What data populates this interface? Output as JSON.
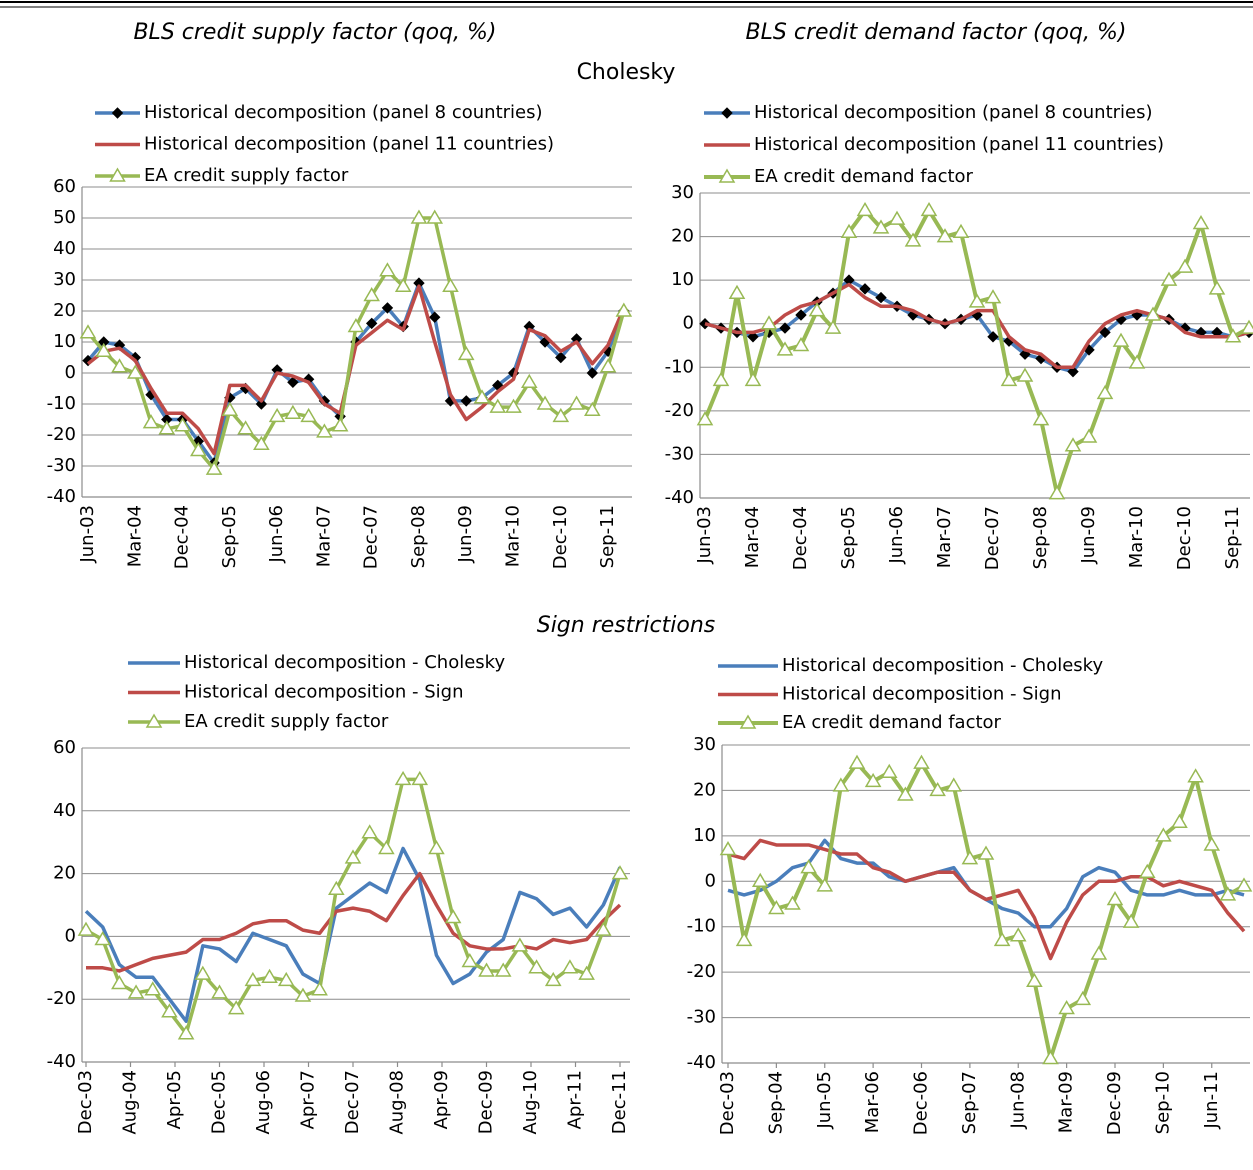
{
  "section_labels": [
    "Cholesky",
    "Sign restrictions"
  ],
  "chart_data": [
    {
      "type": "line",
      "title": "BLS credit supply factor (qoq, %)",
      "categories": [
        "Jun-03",
        null,
        null,
        "Mar-04",
        null,
        null,
        "Dec-04",
        null,
        null,
        "Sep-05",
        null,
        null,
        "Jun-06",
        null,
        null,
        "Mar-07",
        null,
        null,
        "Dec-07",
        null,
        null,
        "Sep-08",
        null,
        null,
        "Jun-09",
        null,
        null,
        "Mar-10",
        null,
        null,
        "Dec-10",
        null,
        null,
        "Sep-11",
        null
      ],
      "ylim": [
        -40,
        60
      ],
      "yticks": [
        -40,
        -30,
        -20,
        -10,
        0,
        10,
        20,
        30,
        40,
        50,
        60
      ],
      "grid": true,
      "series": [
        {
          "name": "Historical decomposition (panel 8 countries)",
          "color": "#4a7ebb",
          "marker": "diamond",
          "values": [
            4,
            10,
            9,
            5,
            -7,
            -15,
            -15,
            -22,
            -29,
            -8,
            -5,
            -10,
            1,
            -3,
            -2,
            -9,
            -14,
            10,
            16,
            21,
            15,
            29,
            18,
            -9,
            -9,
            -8,
            -4,
            0,
            15,
            10,
            5,
            11,
            0,
            7,
            20
          ]
        },
        {
          "name": "Historical decomposition (panel 11 countries)",
          "color": "#be4b48",
          "marker": "none",
          "values": [
            3,
            7,
            8,
            4,
            -5,
            -13,
            -13,
            -18,
            -26,
            -4,
            -4,
            -9,
            0,
            -1,
            -3,
            -10,
            -13,
            9,
            13,
            17,
            14,
            28,
            10,
            -7,
            -15,
            -11,
            -6,
            -2,
            14,
            12,
            7,
            10,
            3,
            9,
            21
          ]
        },
        {
          "name": "EA credit supply factor",
          "color": "#98b954",
          "marker": "triangle",
          "values": [
            13,
            7,
            2,
            0,
            -16,
            -18,
            -17,
            -25,
            -31,
            -12,
            -18,
            -23,
            -14,
            -13,
            -14,
            -19,
            -17,
            15,
            25,
            33,
            28,
            50,
            50,
            28,
            6,
            -8,
            -11,
            -11,
            -3,
            -10,
            -14,
            -10,
            -12,
            2,
            20
          ]
        }
      ]
    },
    {
      "type": "line",
      "title": "BLS credit demand factor (qoq, %)",
      "categories": [
        "Jun-03",
        null,
        null,
        "Mar-04",
        null,
        null,
        "Dec-04",
        null,
        null,
        "Sep-05",
        null,
        null,
        "Jun-06",
        null,
        null,
        "Mar-07",
        null,
        null,
        "Dec-07",
        null,
        null,
        "Sep-08",
        null,
        null,
        "Jun-09",
        null,
        null,
        "Mar-10",
        null,
        null,
        "Dec-10",
        null,
        null,
        "Sep-11",
        null
      ],
      "ylim": [
        -40,
        30
      ],
      "yticks": [
        -40,
        -30,
        -20,
        -10,
        0,
        10,
        20,
        30
      ],
      "grid": true,
      "series": [
        {
          "name": "Historical decomposition (panel 8 countries)",
          "color": "#4a7ebb",
          "marker": "diamond",
          "values": [
            0,
            -1,
            -2,
            -3,
            -2,
            -1,
            2,
            5,
            7,
            10,
            8,
            6,
            4,
            2,
            1,
            0,
            1,
            2,
            -3,
            -4,
            -7,
            -8,
            -10,
            -11,
            -6,
            -2,
            1,
            2,
            2,
            1,
            -1,
            -2,
            -2,
            -3,
            -2
          ]
        },
        {
          "name": "Historical decomposition (panel 11 countries)",
          "color": "#be4b48",
          "marker": "none",
          "values": [
            0,
            -1,
            -2,
            -2,
            -1,
            2,
            4,
            5,
            7,
            9,
            6,
            4,
            4,
            3,
            1,
            0,
            1,
            3,
            3,
            -3,
            -6,
            -7,
            -10,
            -10,
            -4,
            0,
            2,
            3,
            2,
            1,
            -2,
            -3,
            -3,
            -3,
            -2
          ]
        },
        {
          "name": "EA credit demand factor",
          "color": "#98b954",
          "marker": "triangle",
          "values": [
            -22,
            -13,
            7,
            -13,
            0,
            -6,
            -5,
            3,
            -1,
            21,
            26,
            22,
            24,
            19,
            26,
            20,
            21,
            5,
            6,
            -13,
            -12,
            -22,
            -39,
            -28,
            -26,
            -16,
            -4,
            -9,
            2,
            10,
            13,
            23,
            8,
            -3,
            -1
          ]
        }
      ]
    },
    {
      "type": "line",
      "x": [
        0,
        3,
        6,
        9,
        12,
        15,
        18,
        21,
        24,
        27,
        30,
        33,
        36,
        39,
        42,
        45,
        48,
        51,
        54,
        57,
        60,
        63,
        66,
        69,
        72,
        75,
        78,
        81,
        84,
        87,
        90,
        93,
        96
      ],
      "xlim": [
        0,
        96
      ],
      "xticks": [
        {
          "value": 0,
          "label": "Dec-03"
        },
        {
          "value": 8,
          "label": "Aug-04"
        },
        {
          "value": 16,
          "label": "Apr-05"
        },
        {
          "value": 24,
          "label": "Dec-05"
        },
        {
          "value": 32,
          "label": "Aug-06"
        },
        {
          "value": 40,
          "label": "Apr-07"
        },
        {
          "value": 48,
          "label": "Dec-07"
        },
        {
          "value": 56,
          "label": "Aug-08"
        },
        {
          "value": 64,
          "label": "Apr-09"
        },
        {
          "value": 72,
          "label": "Dec-09"
        },
        {
          "value": 80,
          "label": "Aug-10"
        },
        {
          "value": 88,
          "label": "Apr-11"
        },
        {
          "value": 96,
          "label": "Dec-11"
        }
      ],
      "ylim": [
        -40,
        60
      ],
      "yticks": [
        -40,
        -20,
        0,
        20,
        40,
        60
      ],
      "grid": true,
      "series": [
        {
          "name": "Historical decomposition - Cholesky",
          "color": "#4a7ebb",
          "marker": "none",
          "values": [
            8,
            3,
            -9,
            -13,
            -13,
            -20,
            -27,
            -3,
            -4,
            -8,
            1,
            -1,
            -3,
            -12,
            -15,
            9,
            13,
            17,
            14,
            28,
            18,
            -6,
            -15,
            -12,
            -5,
            -1,
            14,
            12,
            7,
            9,
            3,
            10,
            22
          ]
        },
        {
          "name": "Historical decomposition - Sign",
          "color": "#be4b48",
          "marker": "none",
          "values": [
            -10,
            -10,
            -11,
            -9,
            -7,
            -6,
            -5,
            -1,
            -1,
            1,
            4,
            5,
            5,
            2,
            1,
            8,
            9,
            8,
            5,
            13,
            20,
            10,
            1,
            -3,
            -4,
            -4,
            -3,
            -4,
            -1,
            -2,
            -1,
            5,
            10
          ]
        },
        {
          "name": "EA credit supply factor",
          "color": "#98b954",
          "marker": "triangle",
          "values": [
            2,
            -1,
            -15,
            -18,
            -17,
            -24,
            -31,
            -12,
            -18,
            -23,
            -14,
            -13,
            -14,
            -19,
            -17,
            15,
            25,
            33,
            28,
            50,
            50,
            28,
            6,
            -8,
            -11,
            -11,
            -3,
            -10,
            -14,
            -10,
            -12,
            2,
            20
          ]
        }
      ]
    },
    {
      "type": "line",
      "x": [
        0,
        3,
        6,
        9,
        12,
        15,
        18,
        21,
        24,
        27,
        30,
        33,
        36,
        39,
        42,
        45,
        48,
        51,
        54,
        57,
        60,
        63,
        66,
        69,
        72,
        75,
        78,
        81,
        84,
        87,
        90,
        93,
        96
      ],
      "xlim": [
        0,
        96
      ],
      "xticks": [
        {
          "value": 0,
          "label": "Dec-03"
        },
        {
          "value": 9,
          "label": "Sep-04"
        },
        {
          "value": 18,
          "label": "Jun-05"
        },
        {
          "value": 27,
          "label": "Mar-06"
        },
        {
          "value": 36,
          "label": "Dec-06"
        },
        {
          "value": 45,
          "label": "Sep-07"
        },
        {
          "value": 54,
          "label": "Jun-08"
        },
        {
          "value": 63,
          "label": "Mar-09"
        },
        {
          "value": 72,
          "label": "Dec-09"
        },
        {
          "value": 81,
          "label": "Sep-10"
        },
        {
          "value": 90,
          "label": "Jun-11"
        }
      ],
      "ylim": [
        -40,
        30
      ],
      "yticks": [
        -40,
        -30,
        -20,
        -10,
        0,
        10,
        20,
        30
      ],
      "grid": true,
      "series": [
        {
          "name": "Historical decomposition - Cholesky",
          "color": "#4a7ebb",
          "marker": "none",
          "values": [
            -2,
            -3,
            -2,
            0,
            3,
            4,
            9,
            5,
            4,
            4,
            1,
            0,
            1,
            2,
            3,
            -2,
            -4,
            -6,
            -7,
            -10,
            -10,
            -6,
            1,
            3,
            2,
            -2,
            -3,
            -3,
            -2,
            -3,
            -3,
            -2,
            -3
          ]
        },
        {
          "name": "Historical decomposition - Sign",
          "color": "#be4b48",
          "marker": "none",
          "values": [
            6,
            5,
            9,
            8,
            8,
            8,
            7,
            6,
            6,
            3,
            2,
            0,
            1,
            2,
            2,
            -2,
            -4,
            -3,
            -2,
            -8,
            -17,
            -9,
            -3,
            0,
            0,
            1,
            1,
            -1,
            0,
            -1,
            -2,
            -7,
            -11
          ]
        },
        {
          "name": "EA credit demand factor",
          "color": "#98b954",
          "marker": "triangle",
          "values": [
            7,
            -13,
            0,
            -6,
            -5,
            3,
            -1,
            21,
            26,
            22,
            24,
            19,
            26,
            20,
            21,
            5,
            6,
            -13,
            -12,
            -22,
            -39,
            -28,
            -26,
            -16,
            -4,
            -9,
            2,
            10,
            13,
            23,
            8,
            -3,
            -1
          ]
        }
      ]
    }
  ]
}
